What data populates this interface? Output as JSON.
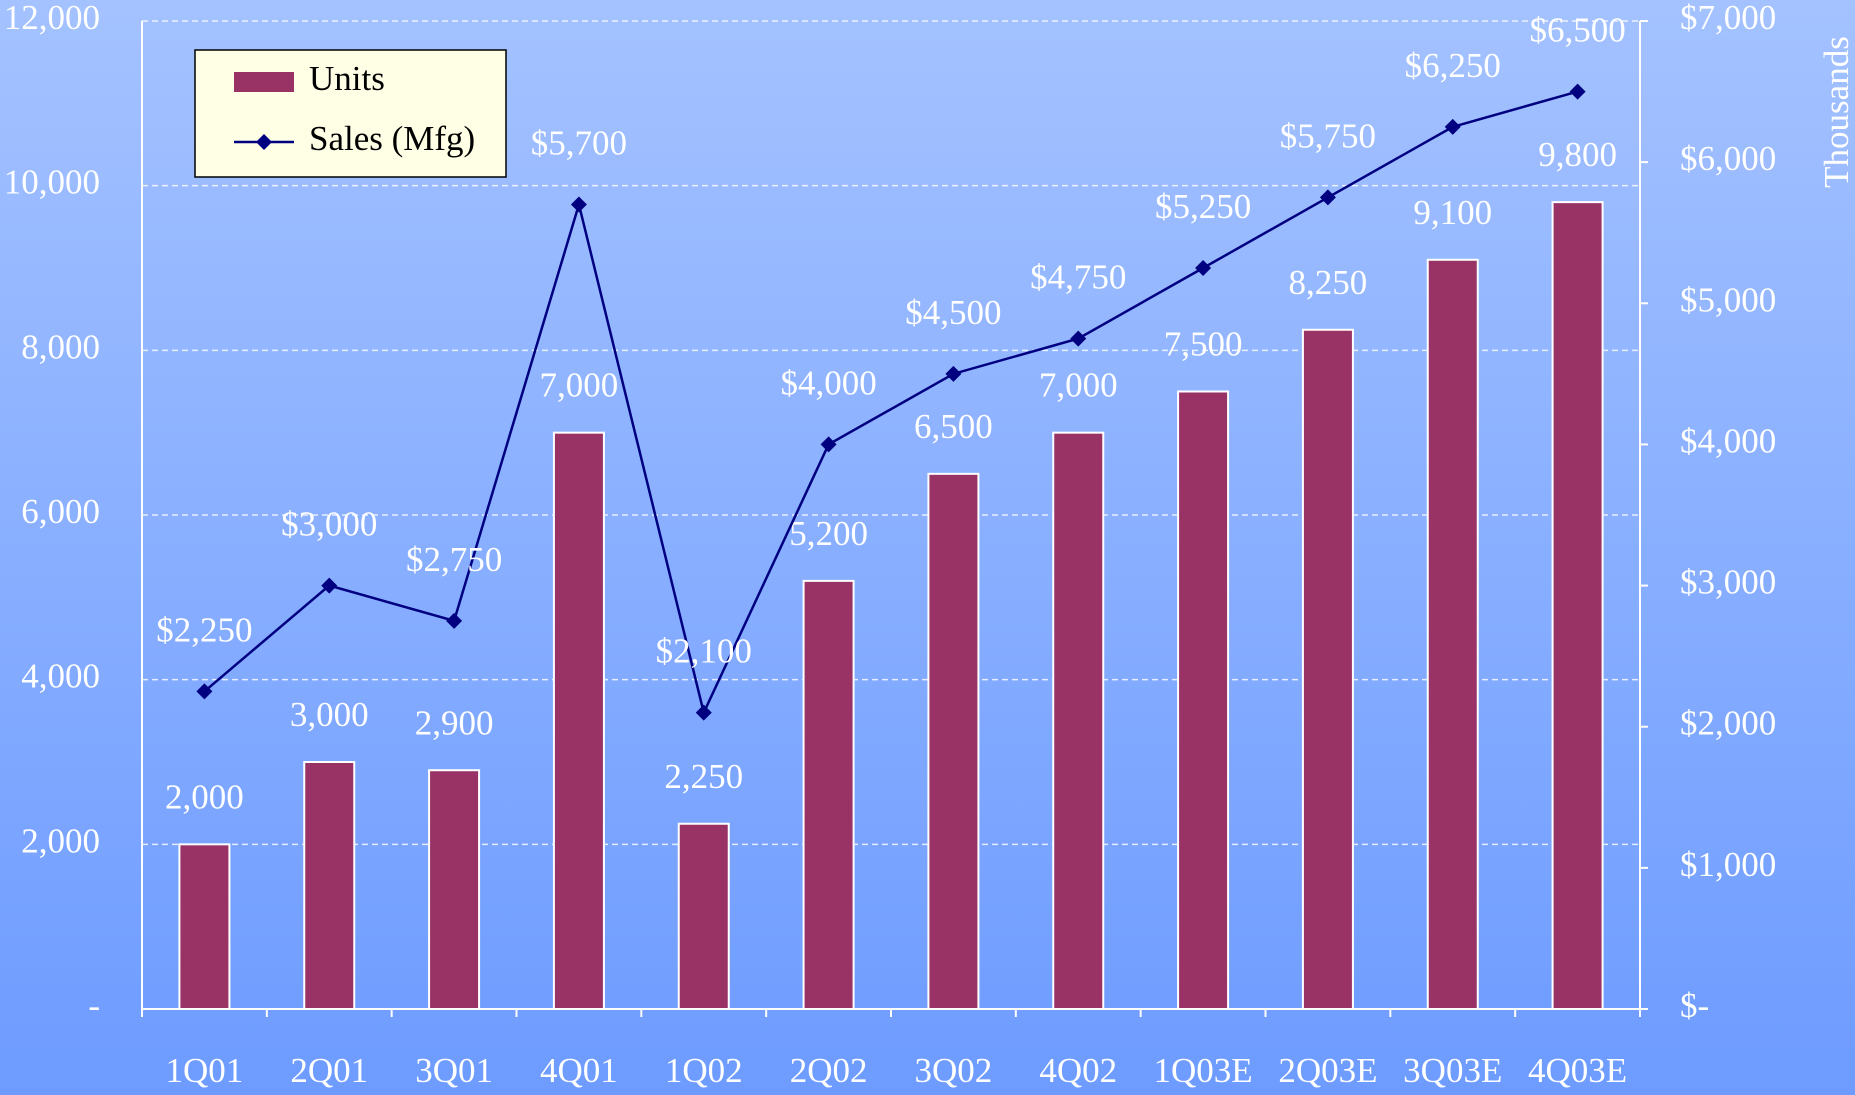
{
  "chart_data": {
    "type": "combo",
    "categories": [
      "1Q01",
      "2Q01",
      "3Q01",
      "4Q01",
      "1Q02",
      "2Q02",
      "3Q02",
      "4Q02",
      "1Q03E",
      "2Q03E",
      "3Q03E",
      "4Q03E"
    ],
    "series": [
      {
        "name": "Units",
        "type": "bar",
        "color": "#993366",
        "axis": "y",
        "values": [
          2000,
          3000,
          2900,
          7000,
          2250,
          5200,
          6500,
          7000,
          7500,
          8250,
          9100,
          9800
        ],
        "value_labels": [
          "2,000",
          "3,000",
          "2,900",
          "7,000",
          "2,250",
          "5,200",
          "6,500",
          "7,000",
          "7,500",
          "8,250",
          "9,100",
          "9,800"
        ]
      },
      {
        "name": "Sales (Mfg)",
        "type": "line",
        "color": "#000080",
        "axis": "y2",
        "values": [
          2250,
          3000,
          2750,
          5700,
          2100,
          4000,
          4500,
          4750,
          5250,
          5750,
          6250,
          6500
        ],
        "value_labels": [
          "$2,250",
          "$3,000",
          "$2,750",
          "$5,700",
          "$2,100",
          "$4,000",
          "$4,500",
          "$4,750",
          "$5,250",
          "$5,750",
          "$6,250",
          "$6,500"
        ]
      }
    ],
    "ylim": [
      0,
      12000
    ],
    "yticks": [
      {
        "value": 0,
        "label": "-"
      },
      {
        "value": 2000,
        "label": "2,000"
      },
      {
        "value": 4000,
        "label": "4,000"
      },
      {
        "value": 6000,
        "label": "6,000"
      },
      {
        "value": 8000,
        "label": "8,000"
      },
      {
        "value": 10000,
        "label": "10,000"
      },
      {
        "value": 12000,
        "label": "12,000"
      }
    ],
    "y2lim": [
      0,
      7000
    ],
    "y2ticks": [
      {
        "value": 0,
        "label": "$-"
      },
      {
        "value": 1000,
        "label": "$1,000"
      },
      {
        "value": 2000,
        "label": "$2,000"
      },
      {
        "value": 3000,
        "label": "$3,000"
      },
      {
        "value": 4000,
        "label": "$4,000"
      },
      {
        "value": 5000,
        "label": "$5,000"
      },
      {
        "value": 6000,
        "label": "$6,000"
      },
      {
        "value": 7000,
        "label": "$7,000"
      }
    ],
    "y2label": "Thousands",
    "grid": true,
    "legend": "upper left"
  }
}
